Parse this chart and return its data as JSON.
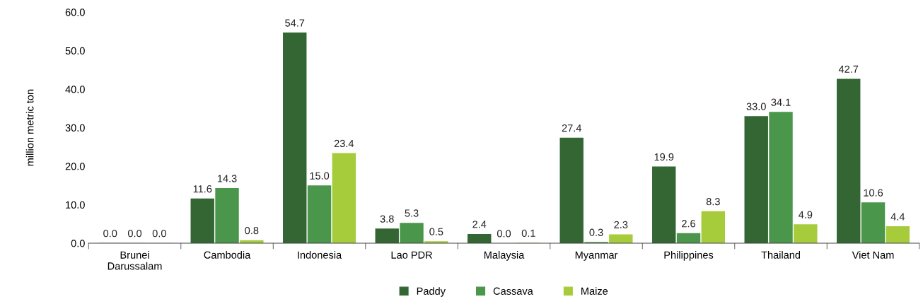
{
  "chart_data": {
    "type": "bar",
    "ylabel": "million metric ton",
    "categories": [
      "Brunei\nDarussalam",
      "Cambodia",
      "Indonesia",
      "Lao PDR",
      "Malaysia",
      "Myanmar",
      "Philippines",
      "Thailand",
      "Viet Nam"
    ],
    "series": [
      {
        "name": "Paddy",
        "color": "#336633",
        "values": [
          0.04,
          11.6,
          54.7,
          3.8,
          2.4,
          27.4,
          19.9,
          33.0,
          42.7
        ],
        "value_labels": [
          "0.0",
          "11.6",
          "54.7",
          "3.8",
          "2.4",
          "27.4",
          "19.9",
          "33.0",
          "42.7"
        ]
      },
      {
        "name": "Cassava",
        "color": "#4a964a",
        "values": [
          0.04,
          14.3,
          15.0,
          5.3,
          0.0,
          0.3,
          2.6,
          34.1,
          10.6
        ],
        "value_labels": [
          "0.0",
          "14.3",
          "15.0",
          "5.3",
          "0.0",
          "0.3",
          "2.6",
          "34.1",
          "10.6"
        ]
      },
      {
        "name": "Maize",
        "color": "#a6cc3c",
        "values": [
          0.04,
          0.8,
          23.4,
          0.5,
          0.1,
          2.3,
          8.3,
          4.9,
          4.4
        ],
        "value_labels": [
          "0.0",
          "0.8",
          "23.4",
          "0.5",
          "0.1",
          "2.3",
          "8.3",
          "4.9",
          "4.4"
        ]
      }
    ],
    "ylim": [
      0,
      60
    ],
    "yticks": [
      {
        "value": 0,
        "label": "0.0"
      },
      {
        "value": 10,
        "label": "10.0"
      },
      {
        "value": 20,
        "label": "20.0"
      },
      {
        "value": 30,
        "label": "30.0"
      },
      {
        "value": 40,
        "label": "40.0"
      },
      {
        "value": 50,
        "label": "50.0"
      },
      {
        "value": 60,
        "label": "60.0"
      }
    ],
    "grid": false,
    "legend": "bottom"
  }
}
